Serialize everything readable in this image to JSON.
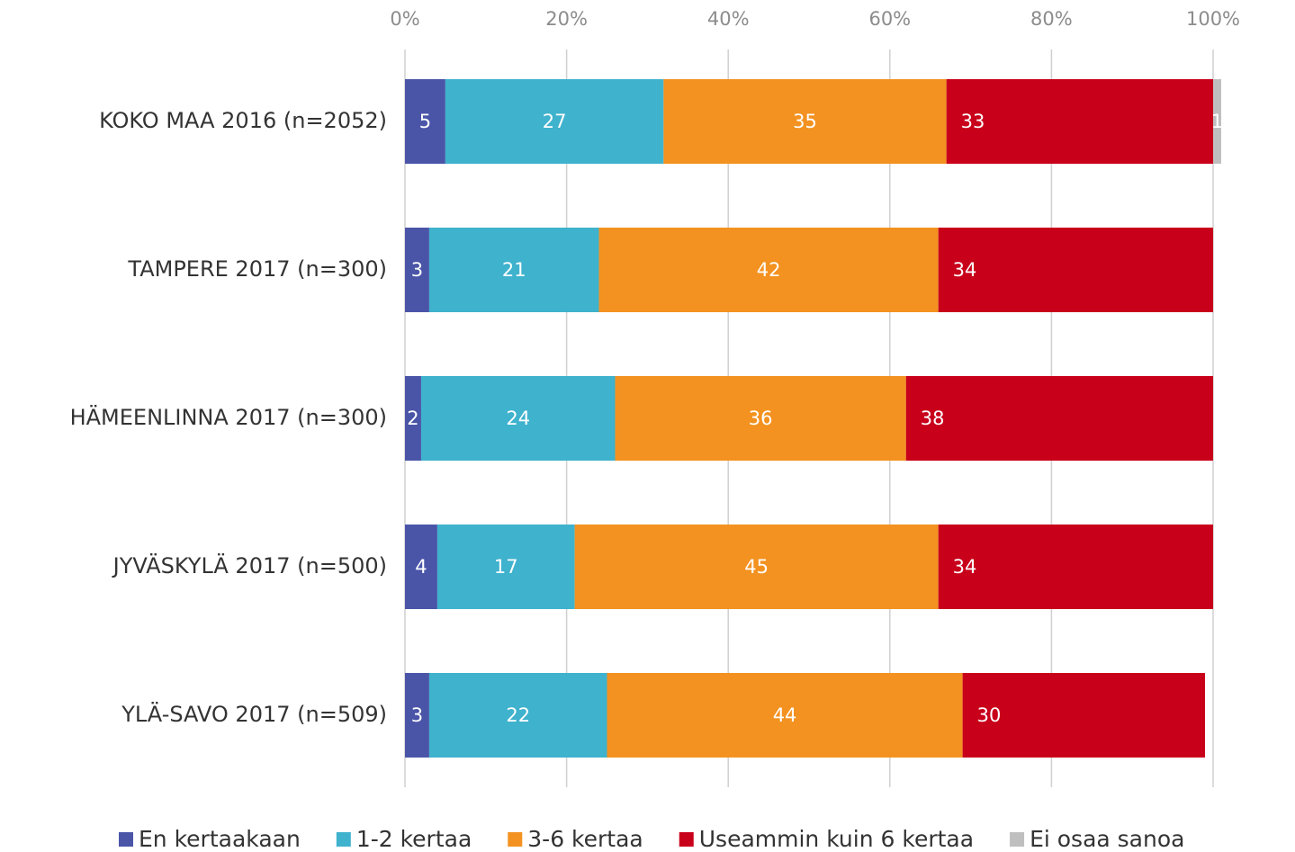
{
  "chart_data": {
    "type": "bar",
    "orientation": "horizontal",
    "stacked": true,
    "categories": [
      "KOKO MAA 2016 (n=2052)",
      "TAMPERE 2017 (n=300)",
      "HÄMEENLINNA 2017 (n=300)",
      "JYVÄSKYLÄ 2017 (n=500)",
      "YLÄ-SAVO 2017 (n=509)"
    ],
    "series": [
      {
        "name": "En kertaakaan",
        "color": "#4a55a8",
        "values": [
          5,
          3,
          2,
          4,
          3
        ]
      },
      {
        "name": "1-2 kertaa",
        "color": "#3fb2cd",
        "values": [
          27,
          21,
          24,
          17,
          22
        ]
      },
      {
        "name": "3-6 kertaa",
        "color": "#f39220",
        "values": [
          35,
          42,
          36,
          45,
          44
        ]
      },
      {
        "name": "Useammin kuin 6 kertaa",
        "color": "#c8001a",
        "values": [
          33,
          34,
          38,
          34,
          30
        ]
      },
      {
        "name": "Ei osaa sanoa",
        "color": "#bfbfbf",
        "values": [
          1,
          null,
          null,
          null,
          null
        ]
      }
    ],
    "xlim": [
      0,
      100
    ],
    "xticks": [
      {
        "value": 0,
        "label": "0%"
      },
      {
        "value": 20,
        "label": "20%"
      },
      {
        "value": 40,
        "label": "40%"
      },
      {
        "value": 60,
        "label": "60%"
      },
      {
        "value": 80,
        "label": "80%"
      },
      {
        "value": 100,
        "label": "100%"
      }
    ],
    "grid": true,
    "legend": "bottom"
  }
}
